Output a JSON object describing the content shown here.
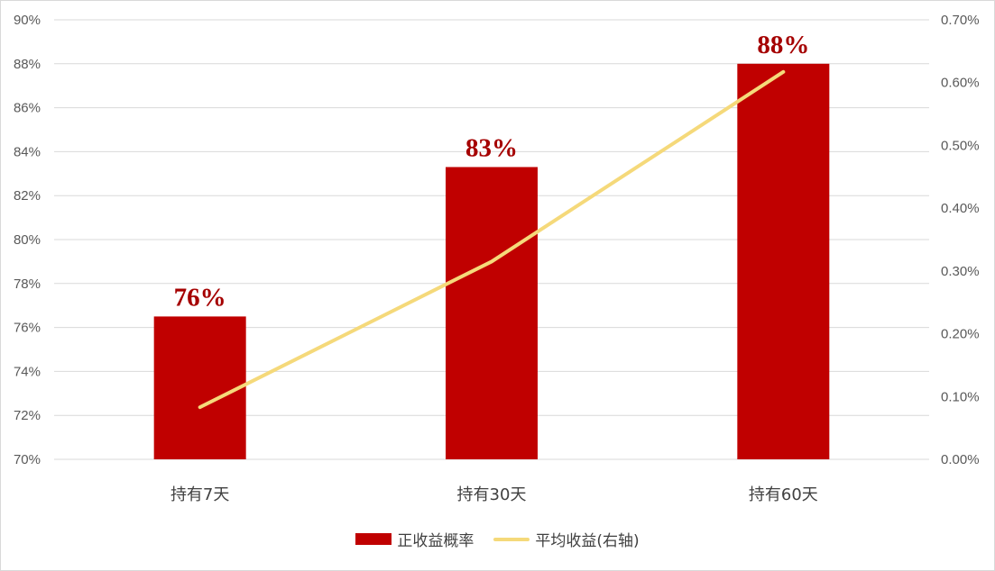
{
  "chart_data": {
    "type": "bar",
    "categories": [
      "持有7天",
      "持有30天",
      "持有60天"
    ],
    "series": [
      {
        "name": "正收益概率",
        "type": "bar",
        "axis": "left",
        "values": [
          76.5,
          83.3,
          88.0
        ],
        "data_labels": [
          "76%",
          "83%",
          "88%"
        ],
        "color": "#c00000"
      },
      {
        "name": "平均收益(右轴)",
        "type": "line",
        "axis": "right",
        "values": [
          0.083,
          0.315,
          0.617
        ],
        "color": "#f5d97a"
      }
    ],
    "y_left": {
      "ylim": [
        70,
        90
      ],
      "ticks": [
        70,
        72,
        74,
        76,
        78,
        80,
        82,
        84,
        86,
        88,
        90
      ],
      "tick_labels": [
        "70%",
        "72%",
        "74%",
        "76%",
        "78%",
        "80%",
        "82%",
        "84%",
        "86%",
        "88%",
        "90%"
      ]
    },
    "y_right": {
      "ylim": [
        0,
        0.7
      ],
      "ticks": [
        0,
        0.1,
        0.2,
        0.3,
        0.4,
        0.5,
        0.6,
        0.7
      ],
      "tick_labels": [
        "0.00%",
        "0.10%",
        "0.20%",
        "0.30%",
        "0.40%",
        "0.50%",
        "0.60%",
        "0.70%"
      ]
    },
    "grid": true,
    "legend": "bottom-center",
    "data_label_color": "#a50000",
    "grid_color": "#d9d9d9"
  },
  "legend": {
    "bar_label": "正收益概率",
    "line_label": "平均收益(右轴)"
  }
}
